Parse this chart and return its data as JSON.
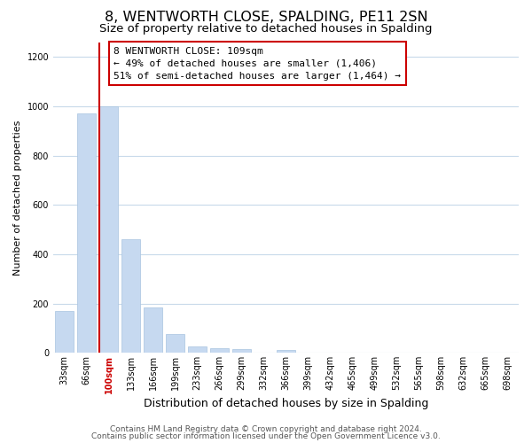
{
  "title": "8, WENTWORTH CLOSE, SPALDING, PE11 2SN",
  "subtitle": "Size of property relative to detached houses in Spalding",
  "xlabel": "Distribution of detached houses by size in Spalding",
  "ylabel": "Number of detached properties",
  "bar_labels": [
    "33sqm",
    "66sqm",
    "100sqm",
    "133sqm",
    "166sqm",
    "199sqm",
    "233sqm",
    "266sqm",
    "299sqm",
    "332sqm",
    "366sqm",
    "399sqm",
    "432sqm",
    "465sqm",
    "499sqm",
    "532sqm",
    "565sqm",
    "598sqm",
    "632sqm",
    "665sqm",
    "698sqm"
  ],
  "bar_values": [
    170,
    970,
    1000,
    460,
    185,
    75,
    25,
    18,
    15,
    0,
    10,
    0,
    0,
    0,
    0,
    0,
    0,
    0,
    0,
    0,
    0
  ],
  "bar_color": "#c6d9f0",
  "bar_edge_color": "#a8c4e0",
  "highlight_index": 2,
  "vline_color": "#cc0000",
  "annotation_line1": "8 WENTWORTH CLOSE: 109sqm",
  "annotation_line2": "← 49% of detached houses are smaller (1,406)",
  "annotation_line3": "51% of semi-detached houses are larger (1,464) →",
  "annotation_box_color": "#ffffff",
  "annotation_box_edge": "#cc0000",
  "ylim": [
    0,
    1260
  ],
  "yticks": [
    0,
    200,
    400,
    600,
    800,
    1000,
    1200
  ],
  "footer_line1": "Contains HM Land Registry data © Crown copyright and database right 2024.",
  "footer_line2": "Contains public sector information licensed under the Open Government Licence v3.0.",
  "background_color": "#ffffff",
  "grid_color": "#c8daea",
  "title_fontsize": 11.5,
  "subtitle_fontsize": 9.5,
  "xlabel_fontsize": 9,
  "ylabel_fontsize": 8,
  "tick_fontsize": 7,
  "annot_fontsize": 8,
  "footer_fontsize": 6.5
}
